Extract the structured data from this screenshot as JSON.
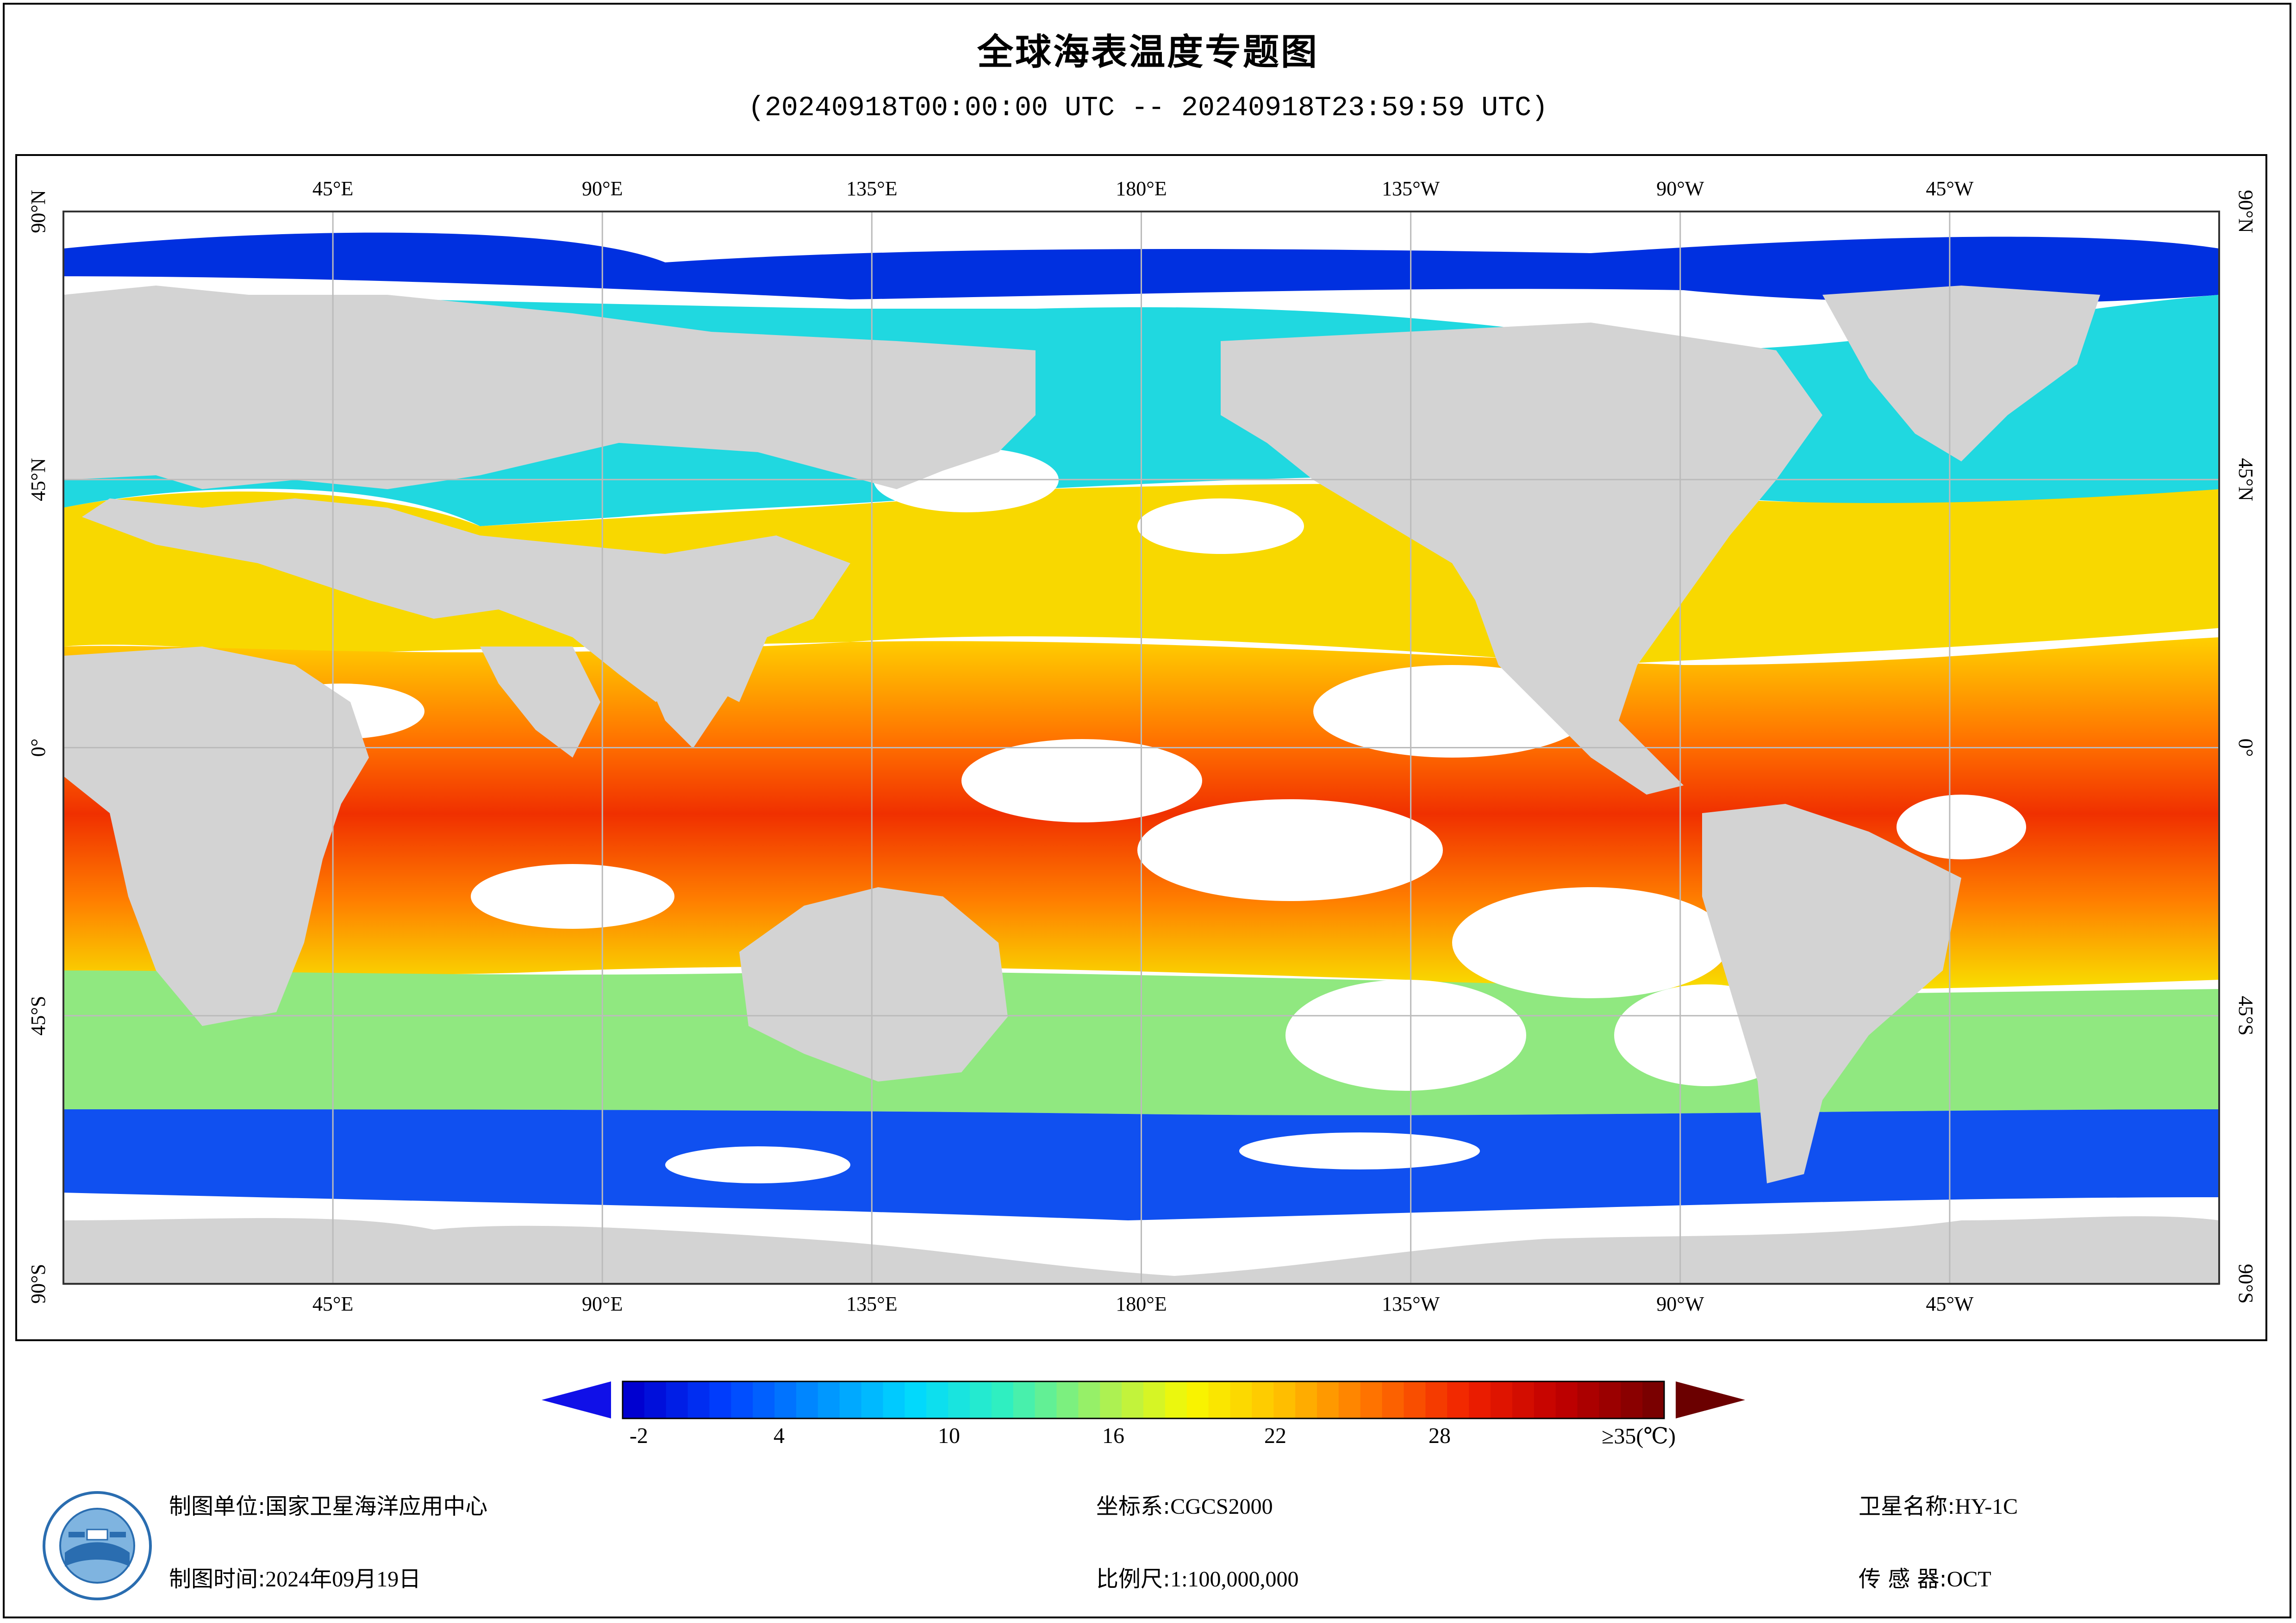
{
  "title": "全球海表温度专题图",
  "subtitle": "(20240918T00:00:00 UTC -- 20240918T23:59:59 UTC)",
  "map": {
    "lon_labels_top": [
      "45°E",
      "90°E",
      "135°E",
      "180°E",
      "135°W",
      "90°W",
      "45°W"
    ],
    "lon_labels_bottom": [
      "45°E",
      "90°E",
      "135°E",
      "180°E",
      "135°W",
      "90°W",
      "45°W"
    ],
    "lat_labels_left": [
      "90°N",
      "45°N",
      "0°",
      "45°S",
      "90°S"
    ],
    "lat_labels_right": [
      "90°N",
      "45°N",
      "0°",
      "45°S",
      "90°S"
    ],
    "colors": {
      "land": "#d3d3d3",
      "no_data": "#ffffff",
      "grid": "#bbbbbb"
    }
  },
  "legend": {
    "tick_labels": [
      "-2",
      "4",
      "10",
      "16",
      "22",
      "28",
      "≥35(℃)"
    ],
    "palette": [
      "#0000d0",
      "#0040ff",
      "#0090ff",
      "#00d8ff",
      "#30f0c0",
      "#a0f060",
      "#f8f800",
      "#ffc000",
      "#ff7000",
      "#f02000",
      "#c00000",
      "#7a0000"
    ],
    "under_color": "#1010e8",
    "over_color": "#6b0000"
  },
  "footer": {
    "org_label": "制图单位:",
    "org_value": "国家卫星海洋应用中心",
    "time_label": "制图时间:",
    "time_value": "2024年09月19日",
    "crs_label": "坐标系:",
    "crs_value": "CGCS2000",
    "scale_label": "比例尺:",
    "scale_value": "1:100,000,000",
    "satellite_label": "卫星名称:",
    "satellite_value": "HY-1C",
    "sensor_label": "传 感 器:",
    "sensor_value": "OCT"
  }
}
